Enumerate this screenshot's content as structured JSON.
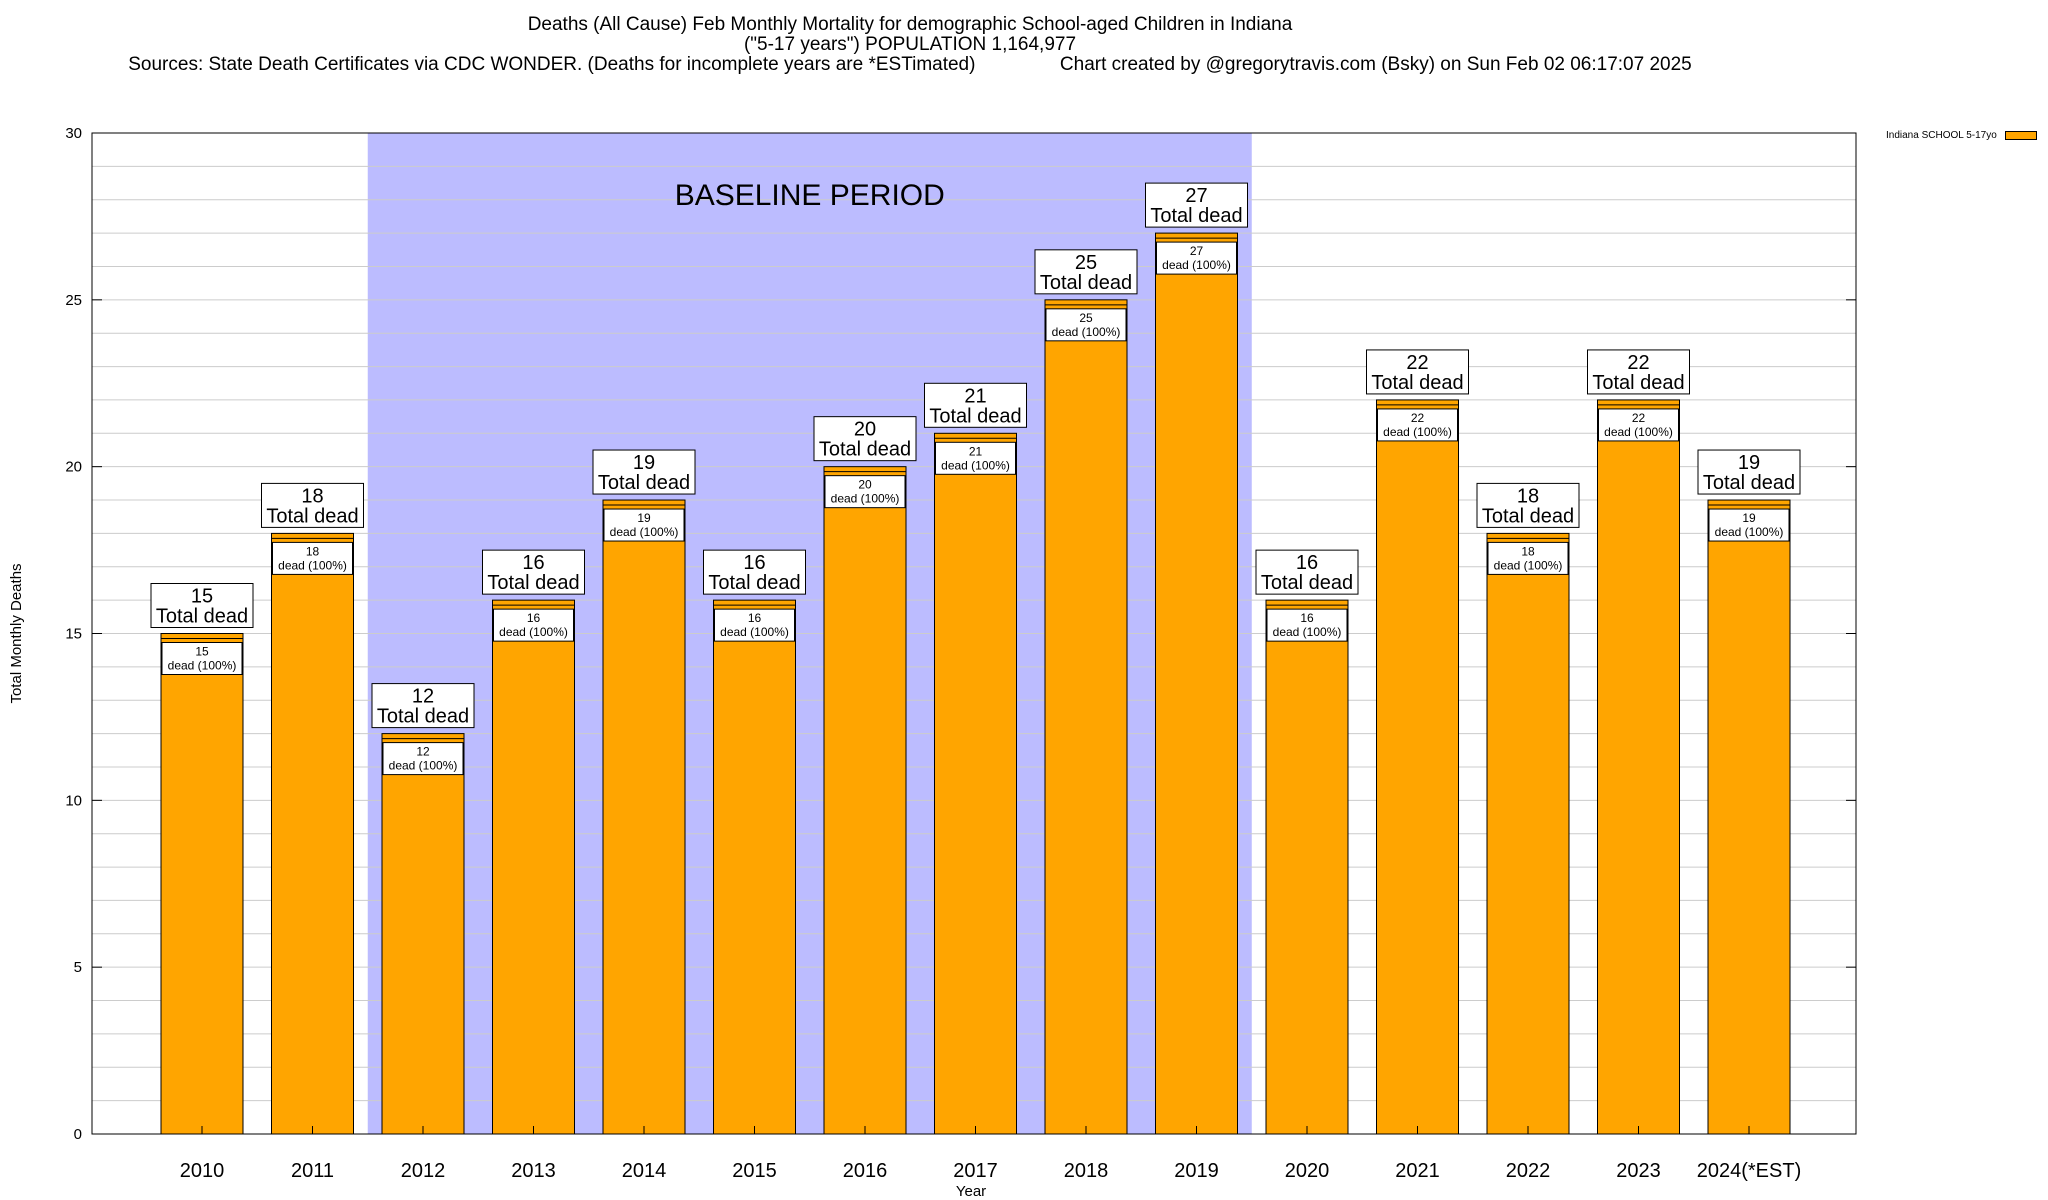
{
  "title_lines": [
    "Deaths (All Cause) Feb Monthly Mortality for demographic School-aged Children in Indiana",
    "(\"5-17 years\") POPULATION 1,164,977",
    "Sources: State Death Certificates via CDC WONDER. (Deaths for incomplete years are *ESTimated)                Chart created by @gregorytravis.com (Bsky) on Sun Feb 02 06:17:07 2025"
  ],
  "legend_label": "Indiana SCHOOL 5-17yo",
  "colors": {
    "bar": "#ffa500",
    "baseline_shade": "#bcbcff",
    "grid": "#cccccc"
  },
  "chart_data": {
    "type": "bar",
    "xlabel": "Year",
    "ylabel": "Total Monthly Deaths",
    "ylim": [
      0,
      30
    ],
    "yticks": [
      0,
      5,
      10,
      15,
      20,
      25,
      30
    ],
    "grid": true,
    "legend_position": "top-right",
    "categories": [
      "2010",
      "2011",
      "2012",
      "2013",
      "2014",
      "2015",
      "2016",
      "2017",
      "2018",
      "2019",
      "2020",
      "2021",
      "2022",
      "2023",
      "2024(*EST)"
    ],
    "series": [
      {
        "name": "Indiana SCHOOL 5-17yo",
        "values": [
          15,
          18,
          12,
          16,
          19,
          16,
          20,
          21,
          25,
          27,
          16,
          22,
          18,
          22,
          19
        ]
      }
    ],
    "top_label_suffix": "Total dead",
    "inner_label_suffix": "dead (100%)",
    "baseline_label": "BASELINE PERIOD",
    "baseline_categories": [
      "2012",
      "2019"
    ]
  }
}
